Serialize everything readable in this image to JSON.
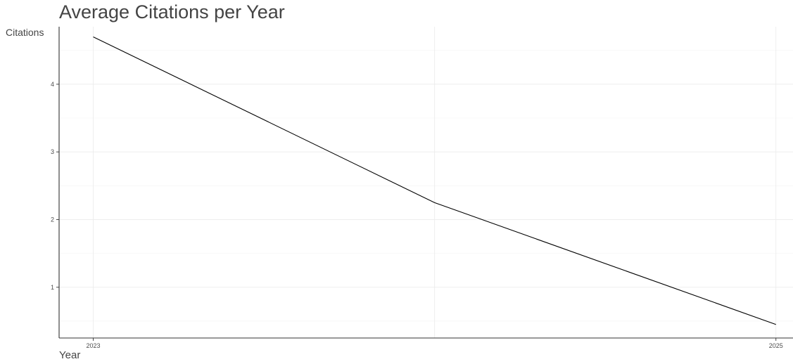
{
  "chart_data": {
    "type": "line",
    "title": "Average Citations per Year",
    "xlabel": "Year",
    "ylabel": "Citations",
    "x": [
      2023,
      2024,
      2025
    ],
    "x_tick_labels": [
      "2023",
      "2025"
    ],
    "x_tick_values": [
      2023,
      2025
    ],
    "y_tick_values": [
      1,
      2,
      3,
      4
    ],
    "y_tick_labels": [
      "1",
      "2",
      "3",
      "4"
    ],
    "xlim": [
      2022.9,
      2025.05
    ],
    "ylim": [
      0.25,
      4.85
    ],
    "grid": true,
    "series": [
      {
        "values": [
          4.7,
          2.25,
          0.45
        ],
        "color": "#000000"
      }
    ]
  }
}
